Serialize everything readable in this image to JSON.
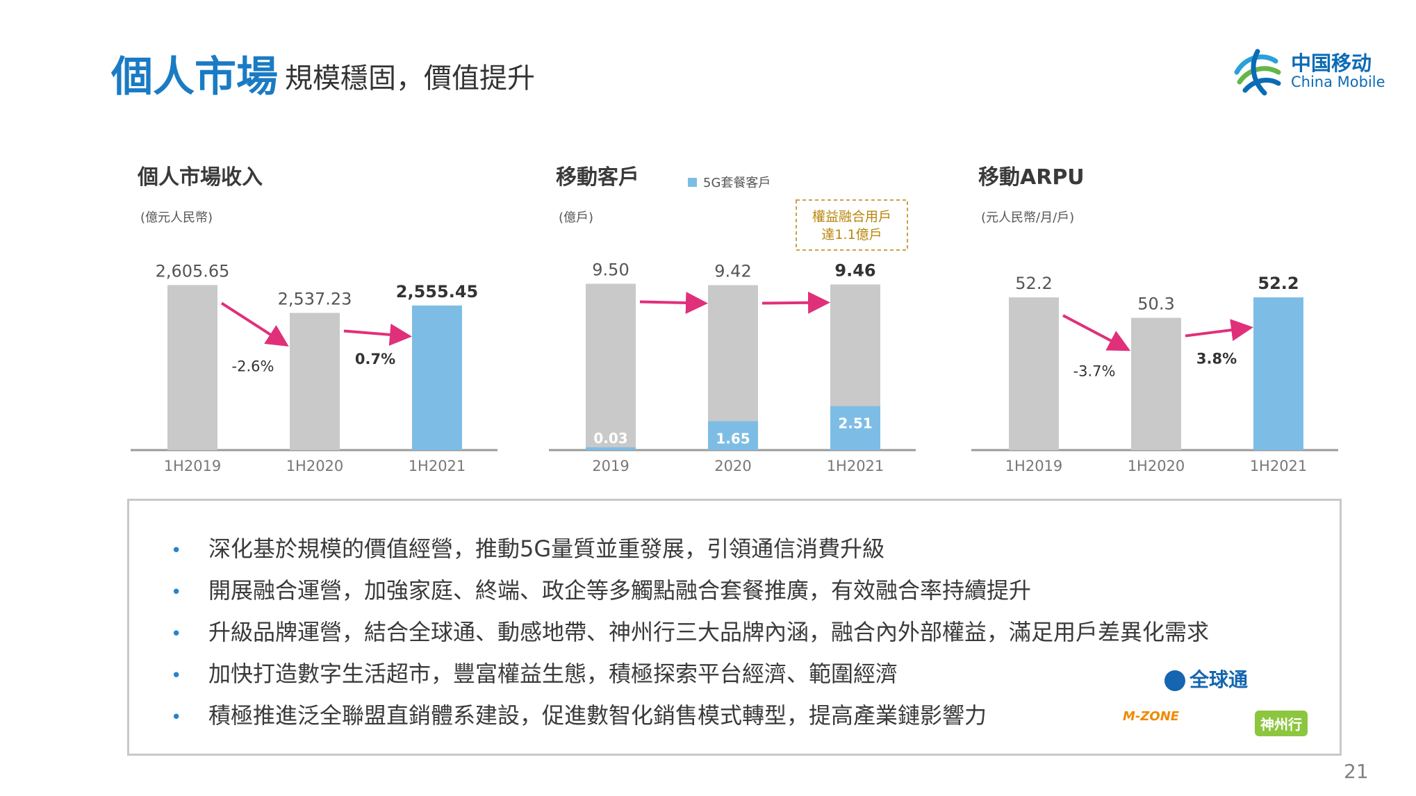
{
  "header": {
    "title": "個人市場",
    "subtitle": "規模穩固，價值提升"
  },
  "logo": {
    "cn": "中国移动",
    "en": "China Mobile"
  },
  "colors": {
    "grey": "#c9c9c9",
    "blue": "#7dbde5",
    "arrow": "#e0307a",
    "title": "#1a7bc4"
  },
  "chart_data": [
    {
      "type": "bar",
      "title": "個人市場收入",
      "unit": "(億元人民幣)",
      "categories": [
        "1H2019",
        "1H2020",
        "1H2021"
      ],
      "values": [
        2605.65,
        2537.23,
        2555.45
      ],
      "value_labels": [
        "2,605.65",
        "2,537.23",
        "2,555.45"
      ],
      "growth": [
        "-2.6%",
        "0.7%"
      ]
    },
    {
      "type": "bar",
      "title": "移動客戶",
      "unit": "(億戶)",
      "legend": "5G套餐客戶",
      "callout": [
        "權益融合用戶",
        "達1.1億戶"
      ],
      "categories": [
        "2019",
        "2020",
        "1H2021"
      ],
      "values": [
        9.5,
        9.42,
        9.46
      ],
      "value_labels": [
        "9.50",
        "9.42",
        "9.46"
      ],
      "series": [
        {
          "name": "5G套餐客戶",
          "values": [
            0.03,
            1.65,
            2.51
          ],
          "labels": [
            "0.03",
            "1.65",
            "2.51"
          ]
        }
      ]
    },
    {
      "type": "bar",
      "title": "移動ARPU",
      "unit": "(元人民幣/月/戶)",
      "categories": [
        "1H2019",
        "1H2020",
        "1H2021"
      ],
      "values": [
        52.2,
        50.3,
        52.2
      ],
      "value_labels": [
        "52.2",
        "50.3",
        "52.2"
      ],
      "growth": [
        "-3.7%",
        "3.8%"
      ]
    }
  ],
  "bullets": [
    "深化基於規模的價值經營，推動5G量質並重發展，引領通信消費升級",
    "開展融合運營，加強家庭、終端、政企等多觸點融合套餐推廣，有效融合率持續提升",
    "升級品牌運營，結合全球通、動感地帶、神州行三大品牌內涵，融合內外部權益，滿足用戶差異化需求",
    "加快打造數字生活超市，豐富權益生態，積極探索平台經濟、範圍經濟",
    "積極推進泛全聯盟直銷體系建設，促進數智化銷售模式轉型，提高產業鏈影響力"
  ],
  "bullet_mark": "•",
  "brands": {
    "gotone": "全球通",
    "mzone": "M-ZONE",
    "easyown": "神州行"
  },
  "page_number": "21"
}
